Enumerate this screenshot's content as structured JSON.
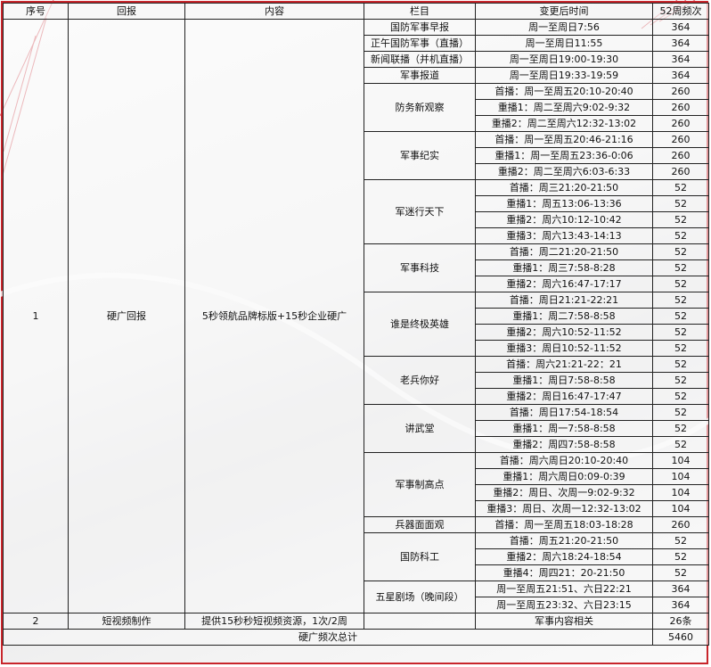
{
  "headers": [
    "序号",
    "回报",
    "内容",
    "栏目",
    "变更后时间",
    "52周频次"
  ],
  "row1": {
    "index": "1",
    "type": "硬广回报",
    "content": "5秒领航品牌标版+15秒企业硬广",
    "programs": [
      {
        "name": "国防军事早报",
        "slots": [
          {
            "time": "周一至周日7:56",
            "freq": "364"
          }
        ]
      },
      {
        "name": "正午国防军事（直播）",
        "slots": [
          {
            "time": "周一至周日11:55",
            "freq": "364"
          }
        ]
      },
      {
        "name": "新闻联播（并机直播）",
        "slots": [
          {
            "time": "周一至周日19:00-19:30",
            "freq": "364"
          }
        ]
      },
      {
        "name": "军事报道",
        "slots": [
          {
            "time": "周一至周日19:33-19:59",
            "freq": "364"
          }
        ]
      },
      {
        "name": "防务新观察",
        "slots": [
          {
            "time": "首播：周一至周五20:10-20:40",
            "freq": "260"
          },
          {
            "time": "重播1：周二至周六9:02-9:32",
            "freq": "260"
          },
          {
            "time": "重播2：周二至周六12:32-13:02",
            "freq": "260"
          }
        ]
      },
      {
        "name": "军事纪实",
        "slots": [
          {
            "time": "首播：周一至周五20:46-21:16",
            "freq": "260"
          },
          {
            "time": "重播1：周一至周五23:36-0:06",
            "freq": "260"
          },
          {
            "time": "重播2：周二至周六6:03-6:33",
            "freq": "260"
          }
        ]
      },
      {
        "name": "军迷行天下",
        "slots": [
          {
            "time": "首播：周三21:20-21:50",
            "freq": "52"
          },
          {
            "time": "重播1：周五13:06-13:36",
            "freq": "52"
          },
          {
            "time": "重播2：周六10:12-10:42",
            "freq": "52"
          },
          {
            "time": "重播3：周六13:43-14:13",
            "freq": "52"
          }
        ]
      },
      {
        "name": "军事科技",
        "slots": [
          {
            "time": "首播：周二21:20-21:50",
            "freq": "52"
          },
          {
            "time": "重播1：周三7:58-8:28",
            "freq": "52"
          },
          {
            "time": "重播2：周六16:47-17:17",
            "freq": "52"
          }
        ]
      },
      {
        "name": "谁是终极英雄",
        "slots": [
          {
            "time": "首播：周日21:21-22:21",
            "freq": "52"
          },
          {
            "time": "重播1：周二7:58-8:58",
            "freq": "52"
          },
          {
            "time": "重播2：周六10:52-11:52",
            "freq": "52"
          },
          {
            "time": "重播3：周日10:52-11:52",
            "freq": "52"
          }
        ]
      },
      {
        "name": "老兵你好",
        "slots": [
          {
            "time": "首播：周六21:21-22：21",
            "freq": "52"
          },
          {
            "time": "重播1：周日7:58-8:58",
            "freq": "52"
          },
          {
            "time": "重播2：周日16:47-17:47",
            "freq": "52"
          }
        ]
      },
      {
        "name": "讲武堂",
        "slots": [
          {
            "time": "首播：周日17:54-18:54",
            "freq": "52"
          },
          {
            "time": "重播1：周一7:58-8:58",
            "freq": "52"
          },
          {
            "time": "重播2：周四7:58-8:58",
            "freq": "52"
          }
        ]
      },
      {
        "name": "军事制高点",
        "slots": [
          {
            "time": "首播：周六周日20:10-20:40",
            "freq": "104"
          },
          {
            "time": "重播1：周六周日0:09-0:39",
            "freq": "104"
          },
          {
            "time": "重播2：周日、次周一9:02-9:32",
            "freq": "104"
          },
          {
            "time": "重播3：周日、次周一12:32-13:02",
            "freq": "104"
          }
        ]
      },
      {
        "name": "兵器面面观",
        "slots": [
          {
            "time": "首播：周一至周五18:03-18:28",
            "freq": "260"
          }
        ]
      },
      {
        "name": "国防科工",
        "slots": [
          {
            "time": "首播：周五21:20-21:50",
            "freq": "52"
          },
          {
            "time": "重播2：周六18:24-18:54",
            "freq": "52"
          },
          {
            "time": "重播4：周四21：20-21:50",
            "freq": "52"
          }
        ]
      },
      {
        "name": "五星剧场（晚间段）",
        "slots": [
          {
            "time": "周一至周五21:51、六日22:21",
            "freq": "364"
          },
          {
            "time": "周一至周五23:32、六日23:15",
            "freq": "364"
          }
        ]
      }
    ]
  },
  "row2": {
    "index": "2",
    "type": "短视频制作",
    "content": "提供15秒秒短视频资源，1次/2周",
    "program": "",
    "time": "军事内容相关",
    "freq": "26条"
  },
  "total": {
    "label": "硬广频次总计",
    "value": "5460"
  },
  "colors": {
    "border_accent": "#c8252b"
  }
}
